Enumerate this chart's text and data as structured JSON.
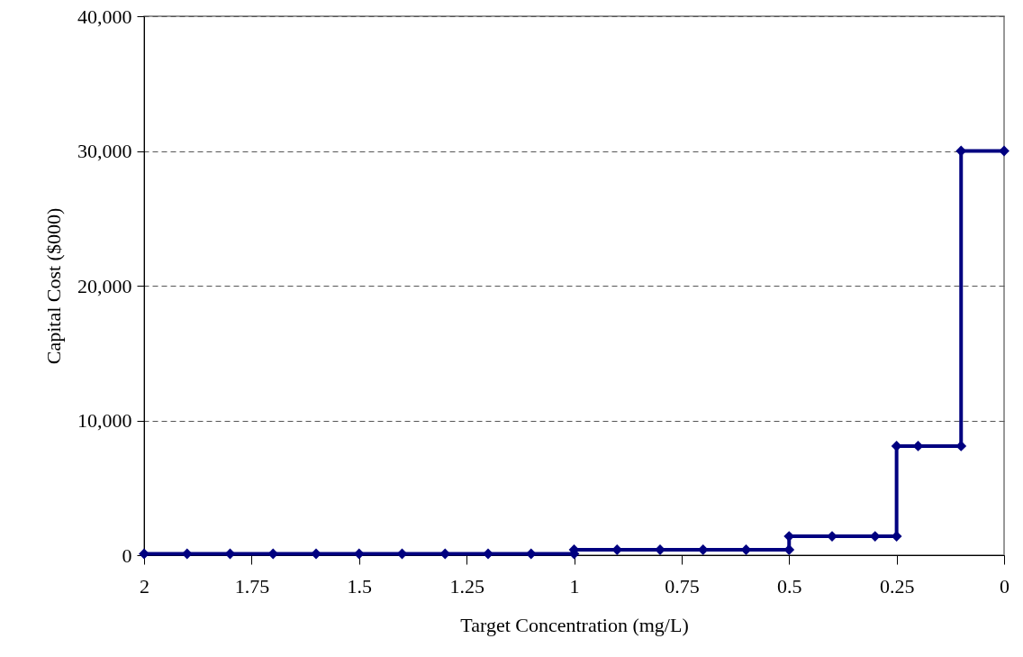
{
  "chart_data": {
    "type": "line",
    "xlabel": "Target Concentration (mg/L)",
    "ylabel": "Capital Cost ($000)",
    "x": [
      2,
      1.9,
      1.8,
      1.7,
      1.6,
      1.5,
      1.4,
      1.3,
      1.2,
      1.1,
      1,
      1,
      0.9,
      0.8,
      0.7,
      0.6,
      0.5,
      0.5,
      0.4,
      0.3,
      0.25,
      0.25,
      0.2,
      0.1,
      0.1,
      0
    ],
    "series": [
      {
        "color": "#000080",
        "values": [
          100,
          100,
          100,
          100,
          100,
          100,
          100,
          100,
          100,
          100,
          100,
          400,
          400,
          400,
          400,
          400,
          400,
          1400,
          1400,
          1400,
          1400,
          8100,
          8100,
          8100,
          30000,
          30000
        ]
      }
    ],
    "xlim": [
      2,
      0
    ],
    "xticks": [
      2,
      1.75,
      1.5,
      1.25,
      1,
      0.75,
      0.5,
      0.25,
      0
    ],
    "ylim": [
      0,
      40000
    ],
    "yticks": [
      0,
      {
        "value": 10000,
        "label": "10,000"
      },
      {
        "value": 20000,
        "label": "20,000"
      },
      {
        "value": 30000,
        "label": "30,000"
      },
      {
        "value": 40000,
        "label": "40,000"
      }
    ],
    "grid": "y",
    "marker": "diamond",
    "line_style": "solid"
  }
}
